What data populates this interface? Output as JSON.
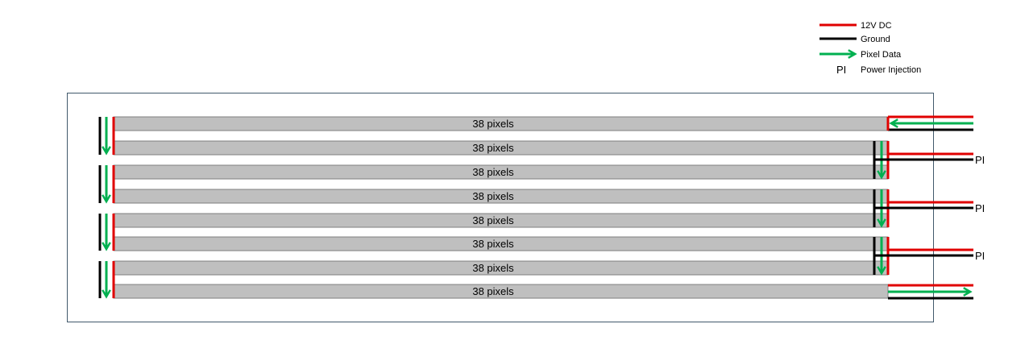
{
  "legend": {
    "items": [
      {
        "label": "12V DC",
        "symbol": "red-line"
      },
      {
        "label": "Ground",
        "symbol": "black-line"
      },
      {
        "label": "Pixel Data",
        "symbol": "green-arrow"
      },
      {
        "label": "Power Injection",
        "symbol": "PI"
      }
    ]
  },
  "strips": [
    {
      "label": "38 pixels"
    },
    {
      "label": "38 pixels"
    },
    {
      "label": "38 pixels"
    },
    {
      "label": "38 pixels"
    },
    {
      "label": "38 pixels"
    },
    {
      "label": "38 pixels"
    },
    {
      "label": "38 pixels"
    },
    {
      "label": "38 pixels"
    }
  ],
  "power_injection_labels": [
    "PI",
    "PI",
    "PI"
  ],
  "colors": {
    "power": "#e00000",
    "ground": "#000000",
    "data": "#00b050",
    "strip_fill": "#bfbfbf",
    "strip_border": "#7f7f7f",
    "frame": "#41596b"
  }
}
